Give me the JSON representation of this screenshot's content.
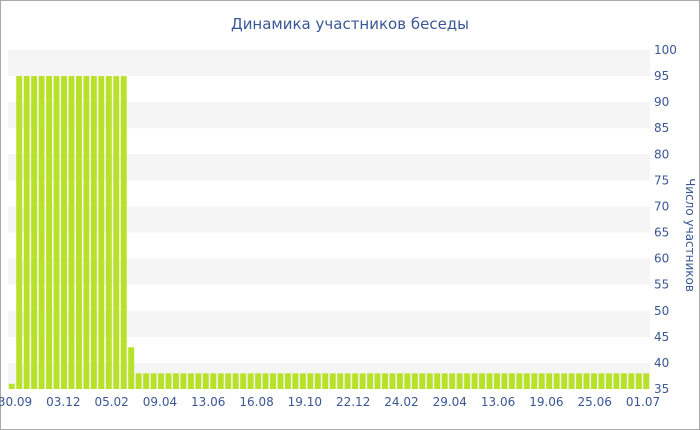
{
  "chart_data": {
    "type": "bar",
    "title": "Динамика участников беседы",
    "xlabel": "",
    "ylabel": "Число участников",
    "ylim": [
      35,
      100
    ],
    "y_ticks": [
      35,
      40,
      45,
      50,
      55,
      60,
      65,
      70,
      75,
      80,
      85,
      90,
      95,
      100
    ],
    "y_axis_side": "right",
    "x_ticks": [
      "30.09",
      "03.12",
      "05.02",
      "09.04",
      "13.06",
      "16.08",
      "19.10",
      "22.12",
      "24.02",
      "29.04",
      "13.06",
      "19.06",
      "25.06",
      "01.07"
    ],
    "grid": "alternating horizontal bands",
    "legend": "none",
    "bar_color": "#b8e22a",
    "band_color": "#f5f5f5",
    "series": [
      {
        "values": [
          36,
          95,
          95,
          95,
          95,
          95,
          95,
          95,
          95,
          95,
          95,
          95,
          95,
          95,
          95,
          95,
          43,
          38,
          38,
          38,
          38,
          38,
          38,
          38,
          38,
          38,
          38,
          38,
          38,
          38,
          38,
          38,
          38,
          38,
          38,
          38,
          38,
          38,
          38,
          38,
          38,
          38,
          38,
          38,
          38,
          38,
          38,
          38,
          38,
          38,
          38,
          38,
          38,
          38,
          38,
          38,
          38,
          38,
          38,
          38,
          38,
          38,
          38,
          38,
          38,
          38,
          38,
          38,
          38,
          38,
          38,
          38,
          38,
          38,
          38,
          38,
          38,
          38,
          38,
          38,
          38,
          38,
          38,
          38,
          38,
          38
        ]
      }
    ]
  }
}
